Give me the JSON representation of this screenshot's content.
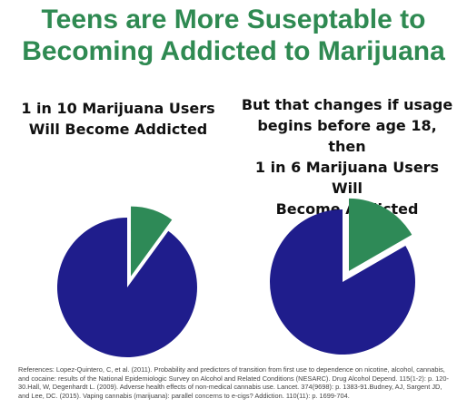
{
  "header": {
    "title_line1": "Teens are More Suseptable to",
    "title_line2": "Becoming Addicted to Marijuana"
  },
  "captions": {
    "left": [
      "1 in 10 Marijuana Users",
      "Will Become Addicted"
    ],
    "right": [
      "But that changes if usage",
      "begins before age 18, then",
      "1 in 6 Marijuana Users Will",
      "Become Addicted"
    ]
  },
  "colors": {
    "title": "#2f8a52",
    "addicted_slice": "#2e8a57",
    "other_slice": "#1f1d8c"
  },
  "chart_data": [
    {
      "type": "pie",
      "title": "1 in 10 Marijuana Users Will Become Addicted",
      "slices": [
        {
          "label": "",
          "value": 0.1,
          "exploded": true,
          "color": "#2e8a57"
        },
        {
          "label": "",
          "value": 0.9,
          "exploded": false,
          "color": "#1f1d8c"
        }
      ]
    },
    {
      "type": "pie",
      "title": "But that changes if usage begins before age 18, then 1 in 6 Marijuana Users Will Become Addicted",
      "slices": [
        {
          "label": "",
          "value": 0.1667,
          "exploded": true,
          "color": "#2e8a57"
        },
        {
          "label": "",
          "value": 0.8333,
          "exploded": false,
          "color": "#1f1d8c"
        }
      ]
    }
  ],
  "references": "References: Lopez-Quintero, C, et al. (2011). Probability and predictors of transition from first use to dependence on nicotine, alcohol, cannabis, and cocaine: results of the National Epidemiologic Survey on Alcohol and Related Conditions (NESARC). Drug Alcohol Depend. 115(1-2): p. 120-30.Hall, W, Degenhardt L. (2009). Adverse health effects of non-medical cannabis use. Lancet. 374(9698): p. 1383-91.Budney, AJ, Sargent JD, and Lee, DC. (2015). Vaping cannabis (marijuana): parallel concerns to e-cigs? Addiction. 110(11): p. 1699-704."
}
